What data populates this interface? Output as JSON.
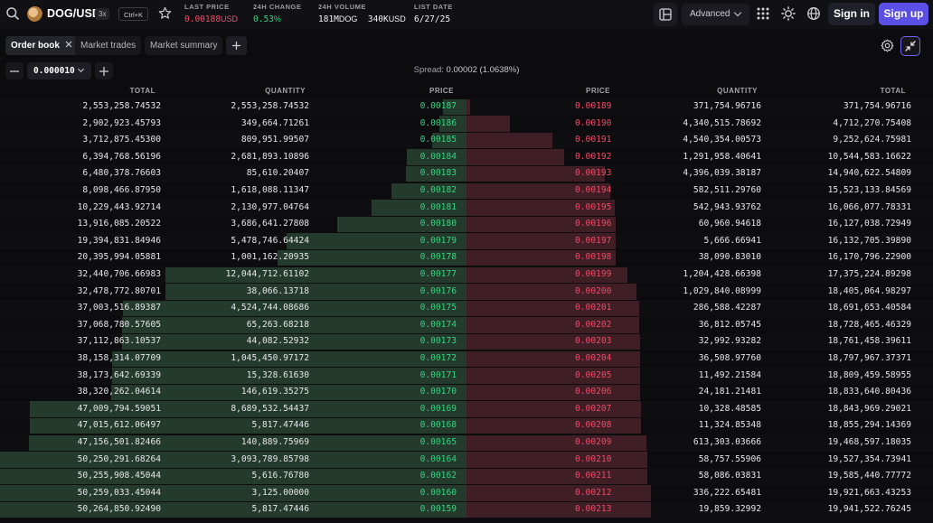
{
  "header": {
    "pair": "DOG/USD",
    "leverage": "3x",
    "shortcut": "Ctrl+K",
    "stats": [
      {
        "label": "LAST PRICE",
        "value": "0.00188",
        "unit": "USD",
        "color": "red"
      },
      {
        "label": "24H CHANGE",
        "value": "0.53",
        "unit": "%",
        "color": "green"
      },
      {
        "label": "24H VOLUME",
        "value": "181M",
        "unit": "DOG",
        "value2": "340K",
        "unit2": "USD",
        "color": "white"
      },
      {
        "label": "LIST DATE",
        "value": "6/27/25",
        "unit": "",
        "color": "white"
      }
    ],
    "advanced_label": "Advanced",
    "signin_label": "Sign in",
    "signup_label": "Sign up",
    "icons": [
      "search-icon",
      "star-icon",
      "layout-icon",
      "grid-icon",
      "sun-icon",
      "globe-icon"
    ]
  },
  "tabs": [
    {
      "label": "Order book",
      "active": true
    },
    {
      "label": "Market trades",
      "active": false
    },
    {
      "label": "Market summary",
      "active": false
    }
  ],
  "grouping": {
    "value": "0.000010"
  },
  "spread": {
    "label": "Spread:",
    "value": "0.00002 (1.0638%)"
  },
  "columns": {
    "bid_total": "TOTAL",
    "bid_quantity": "QUANTITY",
    "bid_price": "PRICE",
    "ask_price": "PRICE",
    "ask_quantity": "QUANTITY",
    "ask_total": "TOTAL"
  },
  "colors": {
    "bid": "#2fd67d",
    "ask": "#ef4e6a",
    "accent": "#5b4fe6"
  },
  "book": [
    {
      "bt": "2,553,258.74532",
      "bq": "2,553,258.74532",
      "bp": "0.00187",
      "ap": "0.00189",
      "aq": "371,754.96716",
      "at": "371,754.96716"
    },
    {
      "bt": "2,902,923.45793",
      "bq": "349,664.71261",
      "bp": "0.00186",
      "ap": "0.00190",
      "aq": "4,340,515.78692",
      "at": "4,712,270.75408"
    },
    {
      "bt": "3,712,875.45300",
      "bq": "809,951.99507",
      "bp": "0.00185",
      "ap": "0.00191",
      "aq": "4,540,354.00573",
      "at": "9,252,624.75981"
    },
    {
      "bt": "6,394,768.56196",
      "bq": "2,681,893.10896",
      "bp": "0.00184",
      "ap": "0.00192",
      "aq": "1,291,958.40641",
      "at": "10,544,583.16622"
    },
    {
      "bt": "6,480,378.76603",
      "bq": "85,610.20407",
      "bp": "0.00183",
      "ap": "0.00193",
      "aq": "4,396,039.38187",
      "at": "14,940,622.54809"
    },
    {
      "bt": "8,098,466.87950",
      "bq": "1,618,088.11347",
      "bp": "0.00182",
      "ap": "0.00194",
      "aq": "582,511.29760",
      "at": "15,523,133.84569"
    },
    {
      "bt": "10,229,443.92714",
      "bq": "2,130,977.04764",
      "bp": "0.00181",
      "ap": "0.00195",
      "aq": "542,943.93762",
      "at": "16,066,077.78331"
    },
    {
      "bt": "13,916,085.20522",
      "bq": "3,686,641.27808",
      "bp": "0.00180",
      "ap": "0.00196",
      "aq": "60,960.94618",
      "at": "16,127,038.72949"
    },
    {
      "bt": "19,394,831.84946",
      "bq": "5,478,746.64424",
      "bp": "0.00179",
      "ap": "0.00197",
      "aq": "5,666.66941",
      "at": "16,132,705.39890"
    },
    {
      "bt": "20,395,994.05881",
      "bq": "1,001,162.20935",
      "bp": "0.00178",
      "ap": "0.00198",
      "aq": "38,090.83010",
      "at": "16,170,796.22900"
    },
    {
      "bt": "32,440,706.66983",
      "bq": "12,044,712.61102",
      "bp": "0.00177",
      "ap": "0.00199",
      "aq": "1,204,428.66398",
      "at": "17,375,224.89298"
    },
    {
      "bt": "32,478,772.80701",
      "bq": "38,066.13718",
      "bp": "0.00176",
      "ap": "0.00200",
      "aq": "1,029,840.08999",
      "at": "18,405,064.98297"
    },
    {
      "bt": "37,003,516.89387",
      "bq": "4,524,744.08686",
      "bp": "0.00175",
      "ap": "0.00201",
      "aq": "286,588.42287",
      "at": "18,691,653.40584"
    },
    {
      "bt": "37,068,780.57605",
      "bq": "65,263.68218",
      "bp": "0.00174",
      "ap": "0.00202",
      "aq": "36,812.05745",
      "at": "18,728,465.46329"
    },
    {
      "bt": "37,112,863.10537",
      "bq": "44,082.52932",
      "bp": "0.00173",
      "ap": "0.00203",
      "aq": "32,992.93282",
      "at": "18,761,458.39611"
    },
    {
      "bt": "38,158,314.07709",
      "bq": "1,045,450.97172",
      "bp": "0.00172",
      "ap": "0.00204",
      "aq": "36,508.97760",
      "at": "18,797,967.37371"
    },
    {
      "bt": "38,173,642.69339",
      "bq": "15,328.61630",
      "bp": "0.00171",
      "ap": "0.00205",
      "aq": "11,492.21584",
      "at": "18,809,459.58955"
    },
    {
      "bt": "38,320,262.04614",
      "bq": "146,619.35275",
      "bp": "0.00170",
      "ap": "0.00206",
      "aq": "24,181.21481",
      "at": "18,833,640.80436"
    },
    {
      "bt": "47,009,794.59051",
      "bq": "8,689,532.54437",
      "bp": "0.00169",
      "ap": "0.00207",
      "aq": "10,328.48585",
      "at": "18,843,969.29021"
    },
    {
      "bt": "47,015,612.06497",
      "bq": "5,817.47446",
      "bp": "0.00168",
      "ap": "0.00208",
      "aq": "11,324.85348",
      "at": "18,855,294.14369"
    },
    {
      "bt": "47,156,501.82466",
      "bq": "140,889.75969",
      "bp": "0.00165",
      "ap": "0.00209",
      "aq": "613,303.03666",
      "at": "19,468,597.18035"
    },
    {
      "bt": "50,250,291.68264",
      "bq": "3,093,789.85798",
      "bp": "0.00164",
      "ap": "0.00210",
      "aq": "58,757.55906",
      "at": "19,527,354.73941"
    },
    {
      "bt": "50,255,908.45044",
      "bq": "5,616.76780",
      "bp": "0.00162",
      "ap": "0.00211",
      "aq": "58,086.03831",
      "at": "19,585,440.77772"
    },
    {
      "bt": "50,259,033.45044",
      "bq": "3,125.00000",
      "bp": "0.00160",
      "ap": "0.00212",
      "aq": "336,222.65481",
      "at": "19,921,663.43253"
    },
    {
      "bt": "50,264,850.92490",
      "bq": "5,817.47446",
      "bp": "0.00159",
      "ap": "0.00213",
      "aq": "19,859.32992",
      "at": "19,941,522.76245"
    }
  ]
}
